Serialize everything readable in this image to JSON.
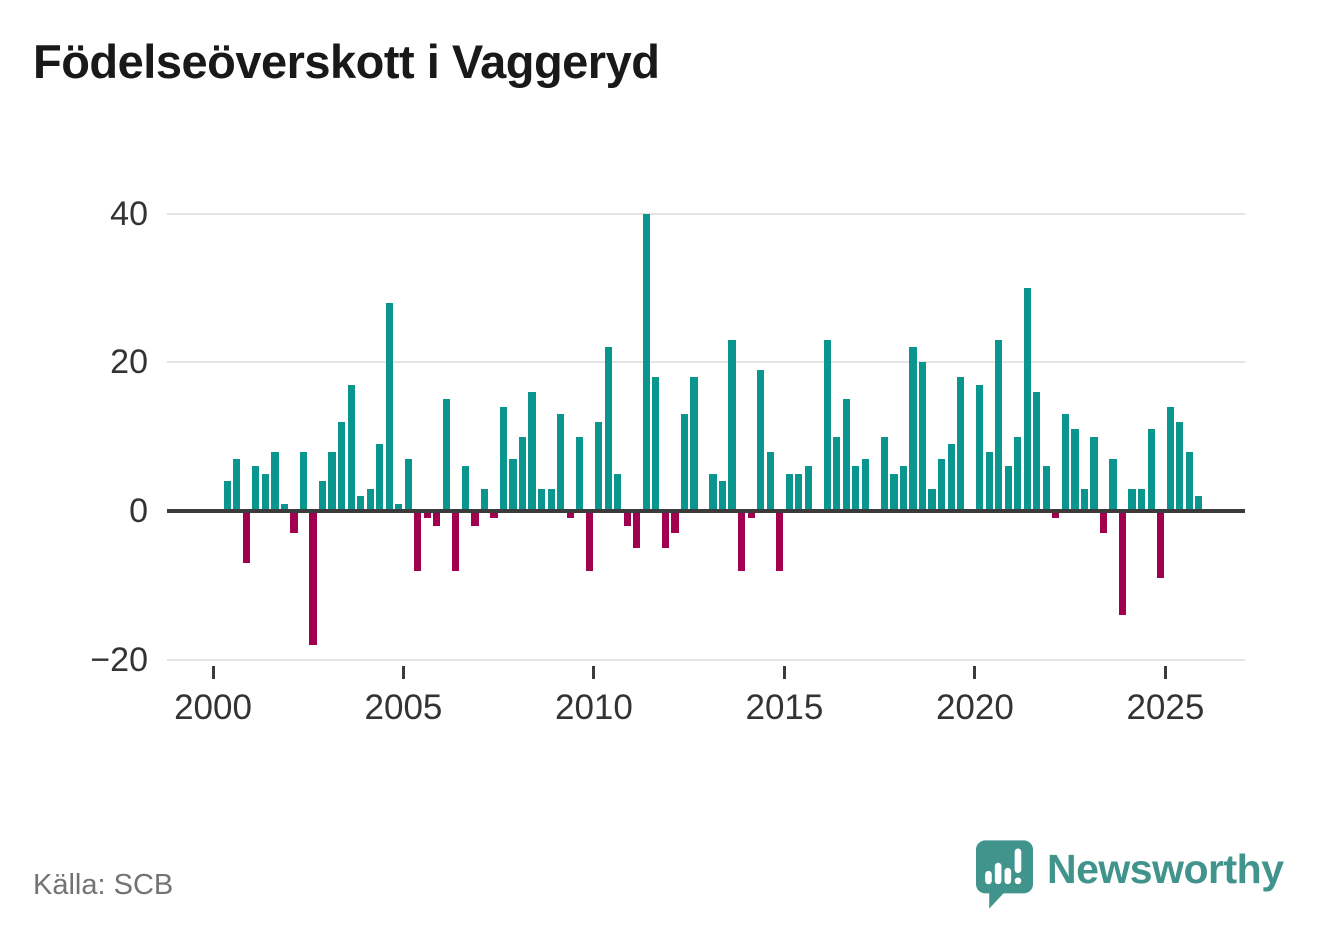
{
  "title": "Födelseöverskott i Vaggeryd",
  "source": "Källa: SCB",
  "branding": {
    "name": "Newsworthy"
  },
  "colors": {
    "positive_bar": "#0a968e",
    "negative_bar": "#a0004d",
    "zero_axis": "#3b3b3b",
    "gridline": "#e4e4e4",
    "tick_text": "#333333",
    "title_text": "#191919",
    "source_text": "#737373",
    "brand_teal": "#40948c"
  },
  "chart_data": {
    "type": "bar",
    "title": "Födelseöverskott i Vaggeryd",
    "period": "quarterly",
    "start": "2000-Q2",
    "end": "2025-Q4",
    "values": [
      4,
      7,
      -7,
      6,
      5,
      8,
      1,
      -3,
      8,
      -18,
      4,
      8,
      12,
      17,
      2,
      3,
      9,
      28,
      1,
      7,
      -8,
      -1,
      -2,
      15,
      -8,
      6,
      -2,
      3,
      -1,
      14,
      7,
      10,
      16,
      3,
      3,
      13,
      -1,
      10,
      -8,
      12,
      22,
      5,
      -2,
      -5,
      40,
      18,
      -5,
      -3,
      13,
      18,
      0,
      5,
      4,
      23,
      -8,
      -1,
      19,
      8,
      -8,
      5,
      5,
      6,
      0,
      23,
      10,
      15,
      6,
      7,
      0,
      10,
      5,
      6,
      22,
      20,
      3,
      7,
      9,
      18,
      0,
      17,
      8,
      23,
      6,
      10,
      30,
      16,
      6,
      -1,
      13,
      11,
      3,
      10,
      -3,
      7,
      -14,
      3,
      3,
      11,
      -9,
      14,
      12,
      8,
      2
    ],
    "y_ticks": [
      40,
      20,
      0,
      -20
    ],
    "y_tick_labels": [
      "40",
      "20",
      "0",
      "−20"
    ],
    "x_tick_years": [
      2000,
      2005,
      2010,
      2015,
      2020,
      2025
    ],
    "x_tick_labels": [
      "2000",
      "2005",
      "2010",
      "2015",
      "2020",
      "2025"
    ],
    "ylim": [
      -20,
      40
    ],
    "grid": "horizontal",
    "legend": "none",
    "xlabel": "",
    "ylabel": ""
  }
}
